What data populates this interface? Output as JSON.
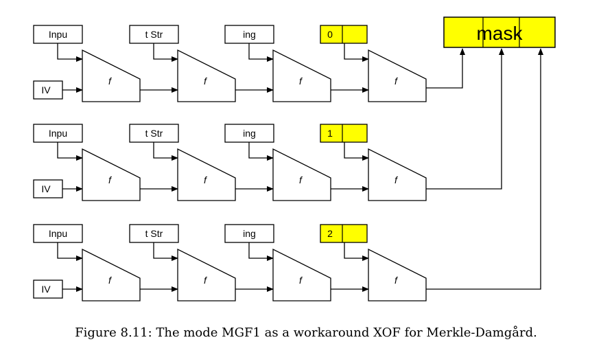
{
  "block_labels": [
    "Inpu",
    "t Str",
    "ing"
  ],
  "iv_label": "IV",
  "f_label": "f",
  "counters": [
    "0",
    "1",
    "2"
  ],
  "mask_label": "mask",
  "caption": "Figure 8.11: The mode MGF1 as a workaround XOF for Merkle-Damgård.",
  "colors": {
    "highlight": "#ffff00",
    "stroke": "#000000",
    "background": "#ffffff"
  }
}
